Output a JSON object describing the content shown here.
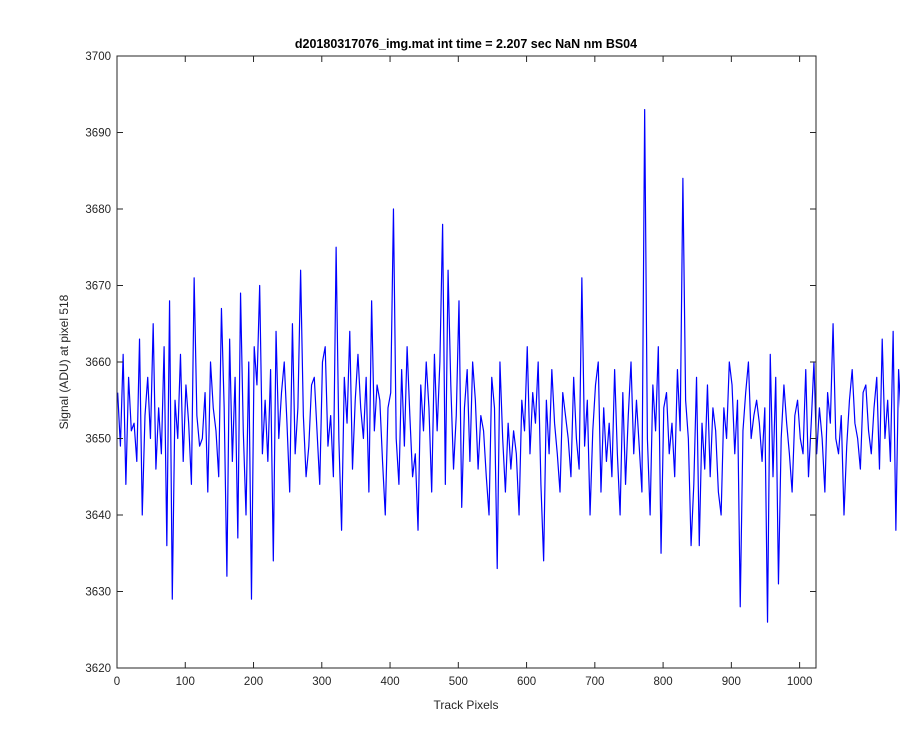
{
  "chart_data": {
    "type": "line",
    "title": "d20180317076_img.mat int time = 2.207 sec  NaN nm BS04",
    "xlabel": "Track Pixels",
    "ylabel": "Signal (ADU) at pixel 518",
    "xlim": [
      0,
      1024
    ],
    "ylim": [
      3620,
      3700
    ],
    "xticks": [
      "0",
      "100",
      "200",
      "300",
      "400",
      "500",
      "600",
      "700",
      "800",
      "900",
      "1000"
    ],
    "yticks": [
      "3620",
      "3630",
      "3640",
      "3650",
      "3660",
      "3670",
      "3680",
      "3690",
      "3700"
    ],
    "grid": false,
    "legend": "none",
    "line_color": "#0000ff",
    "series": [
      {
        "x_start": 1,
        "x_step": 4,
        "values": [
          3656,
          3649,
          3661,
          3644,
          3658,
          3651,
          3652,
          3647,
          3663,
          3640,
          3653,
          3658,
          3650,
          3665,
          3646,
          3654,
          3648,
          3662,
          3636,
          3668,
          3629,
          3655,
          3650,
          3661,
          3647,
          3657,
          3652,
          3644,
          3671,
          3653,
          3649,
          3650,
          3656,
          3643,
          3660,
          3654,
          3651,
          3645,
          3667,
          3654,
          3632,
          3663,
          3647,
          3658,
          3637,
          3669,
          3651,
          3640,
          3660,
          3629,
          3662,
          3657,
          3670,
          3648,
          3655,
          3647,
          3659,
          3634,
          3664,
          3650,
          3656,
          3660,
          3652,
          3643,
          3665,
          3648,
          3654,
          3672,
          3653,
          3645,
          3649,
          3657,
          3658,
          3651,
          3644,
          3660,
          3662,
          3649,
          3653,
          3645,
          3675,
          3650,
          3638,
          3658,
          3652,
          3664,
          3646,
          3655,
          3661,
          3654,
          3650,
          3658,
          3643,
          3668,
          3651,
          3657,
          3655,
          3647,
          3640,
          3654,
          3656,
          3680,
          3650,
          3644,
          3659,
          3649,
          3662,
          3653,
          3645,
          3648,
          3638,
          3657,
          3651,
          3660,
          3654,
          3643,
          3661,
          3651,
          3660,
          3678,
          3644,
          3672,
          3657,
          3646,
          3653,
          3668,
          3641,
          3654,
          3659,
          3647,
          3660,
          3655,
          3646,
          3653,
          3651,
          3645,
          3640,
          3658,
          3654,
          3633,
          3660,
          3650,
          3643,
          3652,
          3646,
          3651,
          3648,
          3640,
          3655,
          3651,
          3662,
          3648,
          3656,
          3652,
          3660,
          3644,
          3634,
          3655,
          3648,
          3659,
          3652,
          3648,
          3643,
          3656,
          3653,
          3650,
          3645,
          3658,
          3650,
          3646,
          3671,
          3649,
          3655,
          3640,
          3651,
          3657,
          3660,
          3643,
          3654,
          3647,
          3652,
          3645,
          3659,
          3648,
          3640,
          3656,
          3644,
          3653,
          3660,
          3648,
          3655,
          3649,
          3643,
          3693,
          3650,
          3640,
          3657,
          3651,
          3662,
          3635,
          3654,
          3656,
          3648,
          3652,
          3645,
          3659,
          3651,
          3684,
          3655,
          3650,
          3636,
          3644,
          3658,
          3636,
          3652,
          3646,
          3657,
          3645,
          3654,
          3651,
          3643,
          3640,
          3654,
          3650,
          3660,
          3657,
          3648,
          3655,
          3628,
          3651,
          3656,
          3660,
          3650,
          3653,
          3655,
          3652,
          3647,
          3654,
          3626,
          3661,
          3645,
          3658,
          3631,
          3650,
          3657,
          3652,
          3648,
          3643,
          3653,
          3655,
          3650,
          3648,
          3659,
          3645,
          3652,
          3660,
          3648,
          3654,
          3650,
          3643,
          3656,
          3652,
          3665,
          3650,
          3648,
          3653,
          3640,
          3649,
          3655,
          3659,
          3652,
          3650,
          3646,
          3656,
          3657,
          3651,
          3648,
          3654,
          3658,
          3646,
          3663,
          3650,
          3655,
          3647,
          3664,
          3638,
          3659,
          3652,
          3649,
          3674,
          3646,
          3655,
          3650,
          3662,
          3644,
          3658,
          3652,
          3640,
          3654,
          3651,
          3648,
          3656,
          3660,
          3650,
          3668,
          3652,
          3645,
          3656,
          3650,
          3660,
          3645,
          3655,
          3649,
          3652,
          3643,
          3658,
          3650,
          3661,
          3646,
          3654,
          3653,
          3666,
          3650,
          3641,
          3656,
          3645,
          3652,
          3650,
          3661,
          3637,
          3654,
          3659,
          3648,
          3665,
          3651,
          3647,
          3656,
          3652,
          3660,
          3646,
          3655,
          3641,
          3648,
          3655,
          3652,
          3650,
          3658,
          3660,
          3643,
          3654,
          3651,
          3645,
          3636,
          3663,
          3649,
          3654,
          3651,
          3659,
          3646,
          3664,
          3650,
          3652,
          3648,
          3662,
          3645,
          3655,
          3651,
          3660,
          3643,
          3657,
          3648,
          3653,
          3656,
          3651,
          3646,
          3666,
          3653,
          3648,
          3660,
          3652,
          3655,
          3649,
          3657,
          3642,
          3654,
          3651,
          3647,
          3652,
          3656,
          3648,
          3671,
          3653,
          3649,
          3656,
          3643,
          3661,
          3650,
          3654,
          3646,
          3659,
          3651,
          3648,
          3655,
          3652,
          3666,
          3640,
          3654,
          3651,
          3658,
          3645,
          3670,
          3650,
          3655,
          3647,
          3652,
          3660,
          3643,
          3654,
          3651,
          3658,
          3647,
          3675,
          3652,
          3650,
          3657,
          3646,
          3653,
          3641,
          3655,
          3659,
          3649,
          3651,
          3656,
          3644,
          3663,
          3652,
          3654,
          3647,
          3660,
          3650,
          3642,
          3656,
          3652,
          3648,
          3665,
          3651,
          3658,
          3645,
          3654,
          3650,
          3679,
          3653,
          3647,
          3659,
          3651,
          3655,
          3649,
          3657,
          3646,
          3652,
          3660,
          3648,
          3654,
          3651,
          3643,
          3658,
          3650,
          3656,
          3652,
          3628,
          3655,
          3649,
          3654,
          3667,
          3650,
          3658,
          3646,
          3653,
          3660,
          3645,
          3656,
          3651,
          3649,
          3654,
          3665,
          3648,
          3656,
          3652,
          3634,
          3658,
          3650,
          3663,
          3646,
          3657,
          3637,
          3654,
          3660,
          3635,
          3650,
          3663
        ]
      }
    ]
  }
}
